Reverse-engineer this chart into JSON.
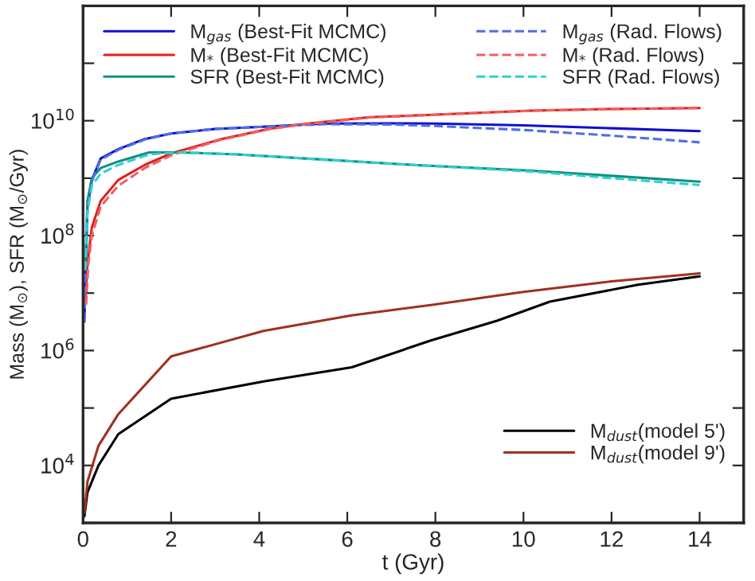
{
  "chart_data": {
    "type": "line",
    "xlabel": "t (Gyr)",
    "ylabel": "Mass (M$_{⊙}$), SFR (M$_{⊙}$/Gyr)",
    "log": "y",
    "xlim": [
      0,
      15
    ],
    "ylim": [
      1000,
      1000000000000.0
    ],
    "xticks": [
      0,
      2,
      4,
      6,
      8,
      10,
      12,
      14
    ],
    "yticks": [
      {
        "value": 1000,
        "label": null
      },
      {
        "value": 10000,
        "label": "10$^{4}$"
      },
      {
        "value": 100000,
        "label": null
      },
      {
        "value": 1000000,
        "label": "10$^{6}$"
      },
      {
        "value": 10000000,
        "label": null
      },
      {
        "value": 100000000,
        "label": "10$^{8}$"
      },
      {
        "value": 1000000000,
        "label": null
      },
      {
        "value": 10000000000,
        "label": "10$^{10}$"
      },
      {
        "value": 100000000000,
        "label": null
      }
    ],
    "legend": "top",
    "grid": false,
    "series": [
      {
        "name": "M$_{gas}$ (Best-Fit MCMC)",
        "color": "#1010d0",
        "line_style": "solid",
        "x": [
          0.03,
          0.1,
          0.2,
          0.4,
          0.8,
          1.4,
          2.0,
          3.0,
          4.0,
          5.5,
          7.0,
          8.0,
          10.0,
          12.0,
          14.0
        ],
        "values": [
          3200000.0,
          320000000.0,
          930000000.0,
          2200000000.0,
          3200000000.0,
          4800000000.0,
          6000000000.0,
          7200000000.0,
          7800000000.0,
          8900000000.0,
          9000000000.0,
          8900000000.0,
          8300000000.0,
          7400000000.0,
          6600000000.0
        ]
      },
      {
        "name": "M$_{*}$ (Best-Fit MCMC)",
        "color": "#e02020",
        "line_style": "solid",
        "x": [
          0.05,
          0.1,
          0.2,
          0.4,
          0.8,
          1.4,
          2.0,
          3.1,
          4.3,
          5.1,
          6.5,
          7.8,
          10.2,
          12.0,
          14.0
        ],
        "values": [
          6300000.0,
          32000000.0,
          140000000.0,
          400000000.0,
          930000000.0,
          1700000000.0,
          2700000000.0,
          4700000000.0,
          7400000000.0,
          8900000000.0,
          11500000000.0,
          12600000000.0,
          15000000000.0,
          16000000000.0,
          16600000000.0
        ]
      },
      {
        "name": "SFR (Best-Fit MCMC)",
        "color": "#109080",
        "line_style": "solid",
        "x": [
          0.05,
          0.1,
          0.2,
          0.4,
          0.8,
          1.5,
          2.2,
          3.5,
          5.5,
          7.5,
          10.2,
          12.0,
          14.0
        ],
        "values": [
          32000000.0,
          400000000.0,
          1000000000.0,
          1500000000.0,
          1950000000.0,
          2800000000.0,
          2800000000.0,
          2600000000.0,
          2100000000.0,
          1700000000.0,
          1350000000.0,
          1100000000.0,
          870000000.0
        ]
      },
      {
        "name": "M$_{gas}$ (Rad. Flows)",
        "color": "#5070e0",
        "line_style": "dashed",
        "x": [
          0.03,
          0.1,
          0.2,
          0.4,
          0.8,
          1.4,
          2.0,
          3.0,
          4.0,
          5.5,
          7.0,
          8.0,
          10.0,
          12.0,
          14.0
        ],
        "values": [
          3200000.0,
          300000000.0,
          890000000.0,
          2100000000.0,
          3100000000.0,
          4700000000.0,
          6000000000.0,
          7200000000.0,
          7800000000.0,
          8700000000.0,
          8600000000.0,
          8100000000.0,
          6900000000.0,
          5500000000.0,
          4200000000.0
        ]
      },
      {
        "name": "M$_{*}$ (Rad. Flows)",
        "color": "#f06060",
        "line_style": "dashed",
        "x": [
          0.07,
          0.12,
          0.2,
          0.4,
          0.8,
          1.4,
          2.0,
          3.1,
          4.3,
          5.1,
          6.5,
          7.8,
          10.2,
          12.0,
          14.0
        ],
        "values": [
          6300000.0,
          32000000.0,
          100000000.0,
          320000000.0,
          740000000.0,
          1500000000.0,
          2500000000.0,
          4600000000.0,
          7300000000.0,
          8800000000.0,
          11300000000.0,
          12500000000.0,
          15000000000.0,
          16000000000.0,
          16600000000.0
        ]
      },
      {
        "name": "SFR (Rad. Flows)",
        "color": "#30d0d0",
        "line_style": "dashed",
        "x": [
          0.05,
          0.1,
          0.2,
          0.4,
          0.8,
          1.5,
          2.2,
          3.5,
          5.5,
          7.5,
          10.2,
          12.0,
          14.0
        ],
        "values": [
          25000000.0,
          250000000.0,
          740000000.0,
          1200000000.0,
          1700000000.0,
          2600000000.0,
          2800000000.0,
          2600000000.0,
          2100000000.0,
          1700000000.0,
          1300000000.0,
          1000000000.0,
          760000000.0
        ]
      },
      {
        "name": "M$_{dust}$(model 5')",
        "color": "#000000",
        "line_style": "solid",
        "x": [
          0.03,
          0.1,
          0.35,
          0.8,
          2.0,
          4.1,
          6.1,
          7.9,
          9.4,
          10.6,
          12.6,
          14.0
        ],
        "values": [
          1300,
          3400,
          10000,
          35000,
          145000,
          290000,
          510000,
          1500000.0,
          3300000.0,
          7100000.0,
          14000000.0,
          19500000.0
        ]
      },
      {
        "name": "M$_{dust}$(model 9')",
        "color": "#a03020",
        "line_style": "solid",
        "x": [
          0.03,
          0.1,
          0.35,
          0.8,
          2.0,
          4.1,
          6.1,
          7.9,
          10.0,
          12.0,
          14.0
        ],
        "values": [
          1500,
          5200,
          22000,
          78000,
          790000,
          2200000.0,
          4100000.0,
          6200000.0,
          10500000.0,
          16000000.0,
          22000000.0
        ]
      }
    ]
  }
}
